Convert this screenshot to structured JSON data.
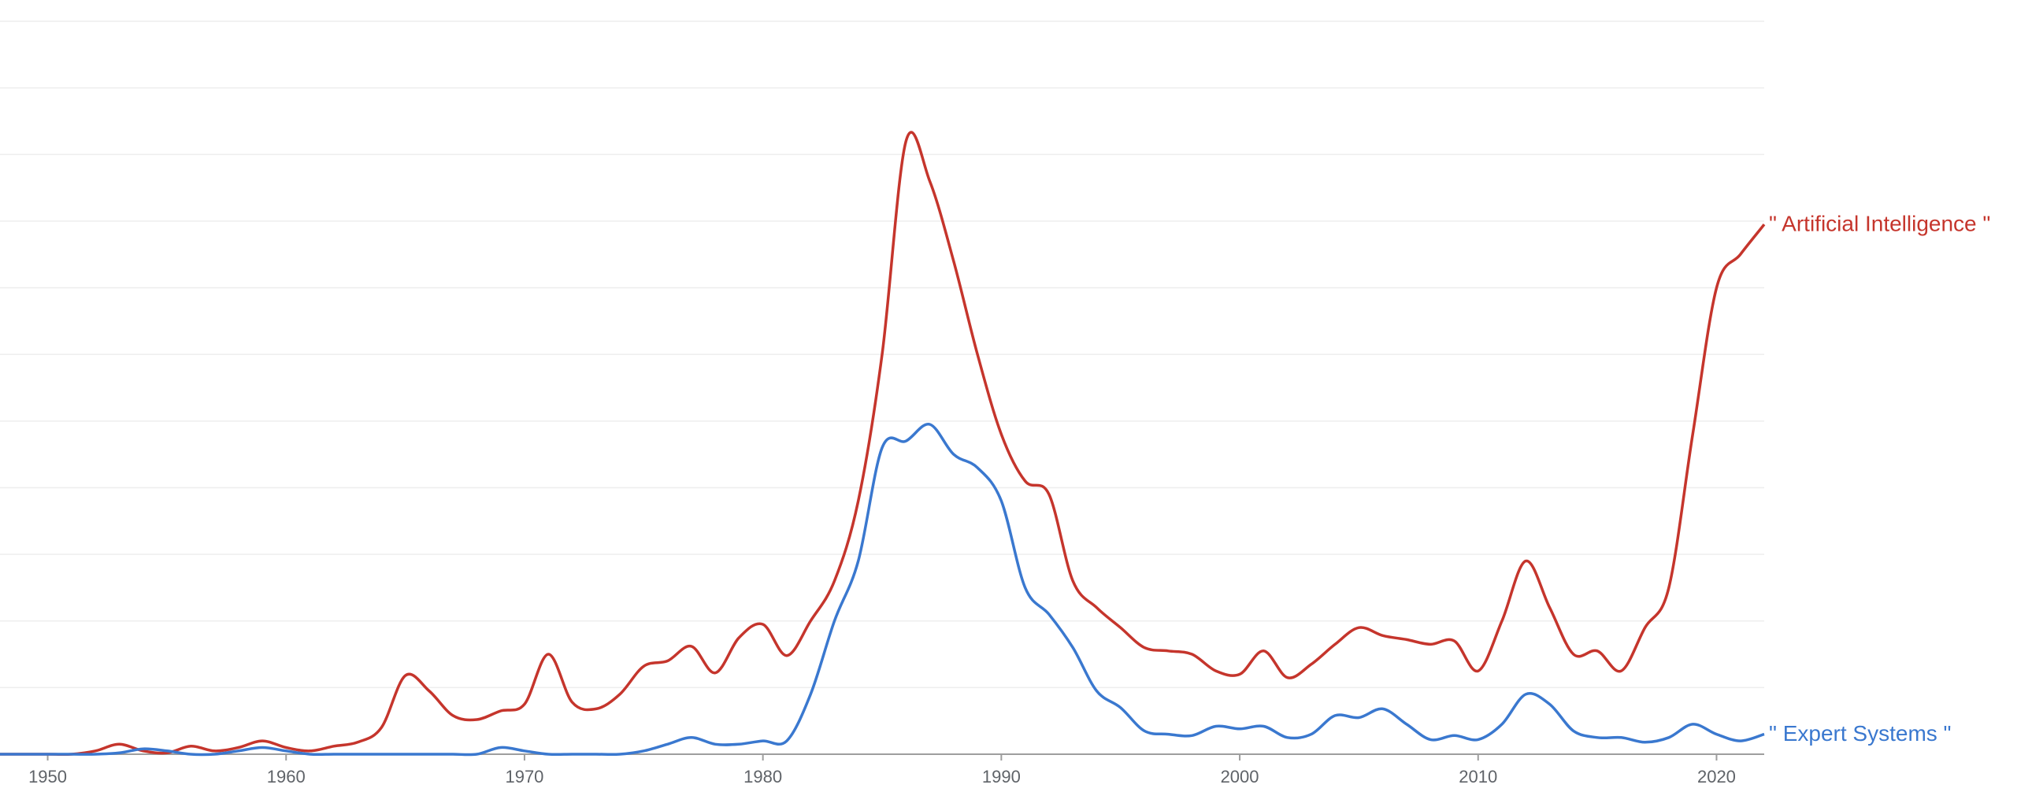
{
  "chart_data": {
    "type": "line",
    "x_ticks": [
      1950,
      1960,
      1970,
      1980,
      1990,
      2000,
      2010,
      2020
    ],
    "xlim": [
      1948,
      2022
    ],
    "ylim": [
      0,
      11
    ],
    "grid": true,
    "title": "",
    "xlabel": "",
    "ylabel": "",
    "series": [
      {
        "name": "\" Artificial Intelligence \"",
        "color": "#c5352c",
        "points": [
          [
            1948,
            0
          ],
          [
            1950,
            0
          ],
          [
            1951,
            0
          ],
          [
            1952,
            0.05
          ],
          [
            1953,
            0.15
          ],
          [
            1954,
            0.05
          ],
          [
            1955,
            0.02
          ],
          [
            1956,
            0.12
          ],
          [
            1957,
            0.05
          ],
          [
            1958,
            0.1
          ],
          [
            1959,
            0.2
          ],
          [
            1960,
            0.1
          ],
          [
            1961,
            0.05
          ],
          [
            1962,
            0.12
          ],
          [
            1963,
            0.18
          ],
          [
            1964,
            0.4
          ],
          [
            1965,
            1.18
          ],
          [
            1966,
            0.95
          ],
          [
            1967,
            0.58
          ],
          [
            1968,
            0.52
          ],
          [
            1969,
            0.65
          ],
          [
            1970,
            0.75
          ],
          [
            1971,
            1.5
          ],
          [
            1972,
            0.78
          ],
          [
            1973,
            0.68
          ],
          [
            1974,
            0.9
          ],
          [
            1975,
            1.32
          ],
          [
            1976,
            1.4
          ],
          [
            1977,
            1.62
          ],
          [
            1978,
            1.22
          ],
          [
            1979,
            1.75
          ],
          [
            1980,
            1.95
          ],
          [
            1981,
            1.48
          ],
          [
            1982,
            2.0
          ],
          [
            1983,
            2.6
          ],
          [
            1984,
            3.8
          ],
          [
            1985,
            6.0
          ],
          [
            1986,
            9.2
          ],
          [
            1987,
            8.6
          ],
          [
            1988,
            7.4
          ],
          [
            1989,
            6.0
          ],
          [
            1990,
            4.8
          ],
          [
            1991,
            4.1
          ],
          [
            1992,
            3.9
          ],
          [
            1993,
            2.6
          ],
          [
            1994,
            2.2
          ],
          [
            1995,
            1.9
          ],
          [
            1996,
            1.6
          ],
          [
            1997,
            1.55
          ],
          [
            1998,
            1.5
          ],
          [
            1999,
            1.25
          ],
          [
            2000,
            1.2
          ],
          [
            2001,
            1.55
          ],
          [
            2002,
            1.15
          ],
          [
            2003,
            1.35
          ],
          [
            2004,
            1.65
          ],
          [
            2005,
            1.9
          ],
          [
            2006,
            1.78
          ],
          [
            2007,
            1.72
          ],
          [
            2008,
            1.65
          ],
          [
            2009,
            1.7
          ],
          [
            2010,
            1.25
          ],
          [
            2011,
            2.0
          ],
          [
            2012,
            2.9
          ],
          [
            2013,
            2.2
          ],
          [
            2014,
            1.5
          ],
          [
            2015,
            1.55
          ],
          [
            2016,
            1.25
          ],
          [
            2017,
            1.9
          ],
          [
            2018,
            2.5
          ],
          [
            2019,
            4.8
          ],
          [
            2020,
            7.0
          ],
          [
            2021,
            7.5
          ],
          [
            2022,
            7.95
          ]
        ]
      },
      {
        "name": "\" Expert Systems \"",
        "color": "#3a78cf",
        "points": [
          [
            1948,
            0
          ],
          [
            1950,
            0
          ],
          [
            1951,
            0
          ],
          [
            1952,
            0
          ],
          [
            1953,
            0.02
          ],
          [
            1954,
            0.08
          ],
          [
            1955,
            0.05
          ],
          [
            1956,
            0
          ],
          [
            1957,
            0
          ],
          [
            1958,
            0.05
          ],
          [
            1959,
            0.1
          ],
          [
            1960,
            0.05
          ],
          [
            1961,
            0
          ],
          [
            1962,
            0
          ],
          [
            1963,
            0
          ],
          [
            1964,
            0
          ],
          [
            1965,
            0
          ],
          [
            1966,
            0
          ],
          [
            1967,
            0
          ],
          [
            1968,
            0
          ],
          [
            1969,
            0.1
          ],
          [
            1970,
            0.05
          ],
          [
            1971,
            0
          ],
          [
            1972,
            0
          ],
          [
            1973,
            0
          ],
          [
            1974,
            0
          ],
          [
            1975,
            0.05
          ],
          [
            1976,
            0.15
          ],
          [
            1977,
            0.25
          ],
          [
            1978,
            0.15
          ],
          [
            1979,
            0.15
          ],
          [
            1980,
            0.2
          ],
          [
            1981,
            0.2
          ],
          [
            1982,
            0.9
          ],
          [
            1983,
            2.0
          ],
          [
            1984,
            2.9
          ],
          [
            1985,
            4.6
          ],
          [
            1986,
            4.7
          ],
          [
            1987,
            4.95
          ],
          [
            1988,
            4.5
          ],
          [
            1989,
            4.3
          ],
          [
            1990,
            3.8
          ],
          [
            1991,
            2.5
          ],
          [
            1992,
            2.1
          ],
          [
            1993,
            1.6
          ],
          [
            1994,
            0.95
          ],
          [
            1995,
            0.7
          ],
          [
            1996,
            0.35
          ],
          [
            1997,
            0.3
          ],
          [
            1998,
            0.28
          ],
          [
            1999,
            0.42
          ],
          [
            2000,
            0.38
          ],
          [
            2001,
            0.42
          ],
          [
            2002,
            0.25
          ],
          [
            2003,
            0.3
          ],
          [
            2004,
            0.58
          ],
          [
            2005,
            0.55
          ],
          [
            2006,
            0.68
          ],
          [
            2007,
            0.45
          ],
          [
            2008,
            0.22
          ],
          [
            2009,
            0.28
          ],
          [
            2010,
            0.22
          ],
          [
            2011,
            0.45
          ],
          [
            2012,
            0.9
          ],
          [
            2013,
            0.75
          ],
          [
            2014,
            0.35
          ],
          [
            2015,
            0.25
          ],
          [
            2016,
            0.25
          ],
          [
            2017,
            0.18
          ],
          [
            2018,
            0.25
          ],
          [
            2019,
            0.45
          ],
          [
            2020,
            0.3
          ],
          [
            2021,
            0.2
          ],
          [
            2022,
            0.3
          ]
        ]
      }
    ]
  }
}
